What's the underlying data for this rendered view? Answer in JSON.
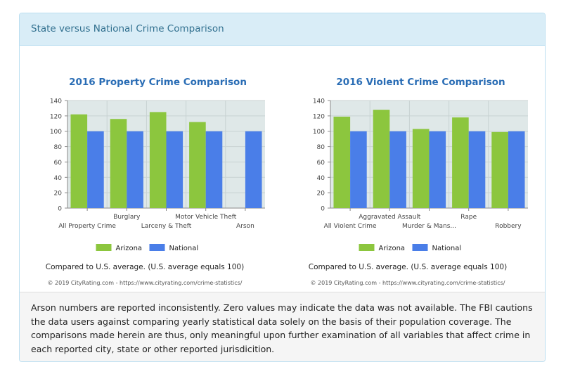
{
  "panel": {
    "title": "State versus National Crime Comparison",
    "footer_note": "Arson numbers are reported inconsistently. Zero values may indicate the data was not available. The FBI cautions the data users against comparing yearly statistical data solely on the basis of their population coverage. The comparisons made herein are thus, only meaningful upon further examination of all variables that affect crime in each reported city, state or other reported jurisdicition."
  },
  "colors": {
    "arizona": "#8cc63e",
    "national": "#4a7ee8",
    "plot_bg": "#dfe8e8",
    "title": "#2a6db5"
  },
  "chart_data": [
    {
      "type": "bar",
      "title": "2016 Property Crime Comparison",
      "categories": [
        "All Property Crime",
        "Burglary",
        "Larceny & Theft",
        "Motor Vehicle Theft",
        "Arson"
      ],
      "series": [
        {
          "name": "Arizona",
          "values": [
            122,
            116,
            125,
            112,
            0
          ]
        },
        {
          "name": "National",
          "values": [
            100,
            100,
            100,
            100,
            100
          ]
        }
      ],
      "ylim": [
        0,
        140
      ],
      "yticks": [
        "0",
        "20",
        "40",
        "60",
        "80",
        "100",
        "120",
        "140"
      ],
      "grid": true,
      "legend": "bottom",
      "caption": "Compared to U.S. average. (U.S. average equals 100)",
      "credit": "© 2019 CityRating.com - https://www.cityrating.com/crime-statistics/"
    },
    {
      "type": "bar",
      "title": "2016 Violent Crime Comparison",
      "categories": [
        "All Violent Crime",
        "Aggravated Assault",
        "Murder & Mans...",
        "Rape",
        "Robbery"
      ],
      "series": [
        {
          "name": "Arizona",
          "values": [
            119,
            128,
            103,
            118,
            99
          ]
        },
        {
          "name": "National",
          "values": [
            100,
            100,
            100,
            100,
            100
          ]
        }
      ],
      "ylim": [
        0,
        140
      ],
      "yticks": [
        "0",
        "20",
        "40",
        "60",
        "80",
        "100",
        "120",
        "140"
      ],
      "grid": true,
      "legend": "bottom",
      "caption": "Compared to U.S. average. (U.S. average equals 100)",
      "credit": "© 2019 CityRating.com - https://www.cityrating.com/crime-statistics/"
    }
  ]
}
